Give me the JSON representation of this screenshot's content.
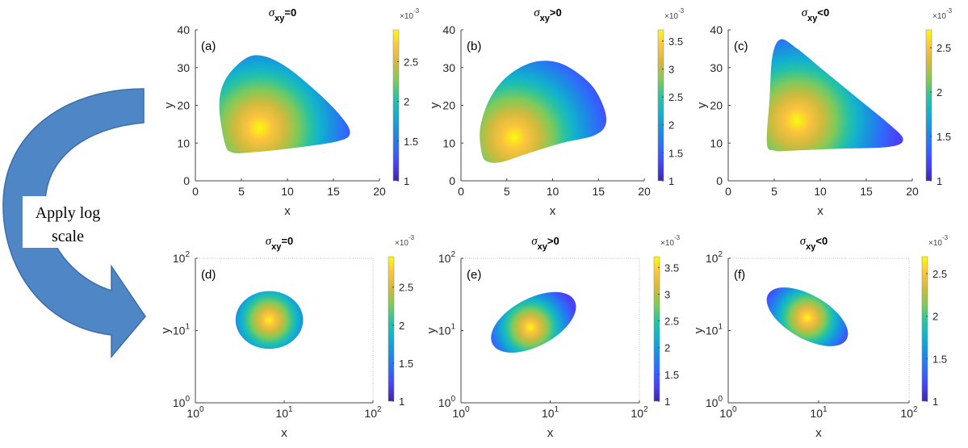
{
  "annotation": {
    "arrow_label_line1": "Apply log",
    "arrow_label_line2": "scale",
    "arrow_color": "#4f86c6"
  },
  "colormap": [
    "#3e26a8",
    "#4743f7",
    "#2f6cfb",
    "#1b8fe0",
    "#12b1cf",
    "#2ac3a0",
    "#7fca5a",
    "#d0ba3d",
    "#fbc33e",
    "#f9fb0e"
  ],
  "chart_data": [
    {
      "id": "a",
      "panel_label": "(a)",
      "type": "heatmap",
      "scale": "linear",
      "title_sigma": "σ",
      "title_sub": "xy",
      "title_rel": "=0",
      "xlabel": "x",
      "ylabel": "y",
      "xlim": [
        0,
        20
      ],
      "ylim": [
        0,
        40
      ],
      "xticks": [
        "0",
        "5",
        "10",
        "15",
        "20"
      ],
      "yticks": [
        "0",
        "10",
        "20",
        "30",
        "40"
      ],
      "colorbar": {
        "min": 1,
        "max": 2.9,
        "ticks": [
          1,
          1.5,
          2,
          2.5
        ],
        "tick_labels": [
          "1",
          "1.5",
          "2",
          "2.5"
        ],
        "multiplier": "×10",
        "exponent": "-3"
      },
      "peak": {
        "x": 7,
        "y": 14
      },
      "domain_boundary": [
        [
          3.2,
          10
        ],
        [
          2.6,
          20
        ],
        [
          3.3,
          27
        ],
        [
          5.5,
          32.5
        ],
        [
          7.5,
          33
        ],
        [
          10,
          30
        ],
        [
          13,
          24
        ],
        [
          15.5,
          18
        ],
        [
          16.8,
          13
        ],
        [
          15.5,
          10.5
        ],
        [
          10,
          8.5
        ],
        [
          6,
          7.5
        ],
        [
          4,
          7.5
        ]
      ]
    },
    {
      "id": "b",
      "panel_label": "(b)",
      "type": "heatmap",
      "scale": "linear",
      "title_sigma": "σ",
      "title_sub": "xy",
      "title_rel": ">0",
      "xlabel": "x",
      "ylabel": "y",
      "xlim": [
        0,
        20
      ],
      "ylim": [
        0,
        40
      ],
      "xticks": [
        "0",
        "5",
        "10",
        "15",
        "20"
      ],
      "yticks": [
        "0",
        "10",
        "20",
        "30",
        "40"
      ],
      "colorbar": {
        "min": 1,
        "max": 3.7,
        "ticks": [
          1,
          1.5,
          2,
          2.5,
          3,
          3.5
        ],
        "tick_labels": [
          "1",
          "1.5",
          "2",
          "2.5",
          "3",
          "3.5"
        ],
        "multiplier": "×10",
        "exponent": "-3"
      },
      "peak": {
        "x": 5.8,
        "y": 11.5
      },
      "domain_boundary": [
        [
          2.3,
          7
        ],
        [
          2.1,
          14
        ],
        [
          3.2,
          22
        ],
        [
          5.2,
          28
        ],
        [
          8,
          31.5
        ],
        [
          11,
          31
        ],
        [
          14,
          26
        ],
        [
          15.5,
          20
        ],
        [
          15.8,
          15
        ],
        [
          14.5,
          12
        ],
        [
          11,
          10
        ],
        [
          7,
          7
        ],
        [
          4.5,
          5
        ],
        [
          3,
          5
        ]
      ]
    },
    {
      "id": "c",
      "panel_label": "(c)",
      "type": "heatmap",
      "scale": "linear",
      "title_sigma": "σ",
      "title_sub": "xy",
      "title_rel": "<0",
      "xlabel": "x",
      "ylabel": "y",
      "xlim": [
        0,
        20
      ],
      "ylim": [
        0,
        40
      ],
      "xticks": [
        "0",
        "5",
        "10",
        "15",
        "20"
      ],
      "yticks": [
        "0",
        "10",
        "20",
        "30",
        "40"
      ],
      "colorbar": {
        "min": 1,
        "max": 2.7,
        "ticks": [
          1,
          1.5,
          2,
          2.5
        ],
        "tick_labels": [
          "1",
          "1.5",
          "2",
          "2.5"
        ],
        "multiplier": "×10",
        "exponent": "-3"
      },
      "peak": {
        "x": 7.5,
        "y": 16
      },
      "domain_boundary": [
        [
          4.2,
          10
        ],
        [
          4.5,
          22
        ],
        [
          4.8,
          33
        ],
        [
          5.7,
          37.5
        ],
        [
          7.5,
          35
        ],
        [
          10,
          30
        ],
        [
          14,
          22
        ],
        [
          17.5,
          15
        ],
        [
          19,
          11
        ],
        [
          17.5,
          9
        ],
        [
          12,
          8.5
        ],
        [
          7,
          8
        ],
        [
          5,
          8
        ]
      ]
    },
    {
      "id": "d",
      "panel_label": "(d)",
      "type": "heatmap",
      "scale": "log",
      "title_sigma": "σ",
      "title_sub": "xy",
      "title_rel": "=0",
      "xlabel": "x",
      "ylabel": "y",
      "xlim": [
        1,
        100
      ],
      "ylim": [
        1,
        100
      ],
      "xticks": [
        "10^0",
        "10^1",
        "10^2"
      ],
      "yticks": [
        "10^0",
        "10^1",
        "10^2"
      ],
      "colorbar": {
        "min": 1,
        "max": 2.9,
        "ticks": [
          1,
          1.5,
          2,
          2.5
        ],
        "tick_labels": [
          "1",
          "1.5",
          "2",
          "2.5"
        ],
        "multiplier": "×10",
        "exponent": "-3"
      },
      "peak": {
        "x": 6.8,
        "y": 14
      },
      "domain_ellipse": {
        "cx": 6.8,
        "cy": 14,
        "rx_decades": 0.38,
        "ry_decades": 0.4,
        "tilt_deg": 0
      }
    },
    {
      "id": "e",
      "panel_label": "(e)",
      "type": "heatmap",
      "scale": "log",
      "title_sigma": "σ",
      "title_sub": "xy",
      "title_rel": ">0",
      "xlabel": "x",
      "ylabel": "y",
      "xlim": [
        1,
        100
      ],
      "ylim": [
        1,
        100
      ],
      "xticks": [
        "10^0",
        "10^1",
        "10^2"
      ],
      "yticks": [
        "10^0",
        "10^1",
        "10^2"
      ],
      "colorbar": {
        "min": 1,
        "max": 3.7,
        "ticks": [
          1,
          1.5,
          2,
          2.5,
          3,
          3.5
        ],
        "tick_labels": [
          "1",
          "1.5",
          "2",
          "2.5",
          "3",
          "3.5"
        ],
        "multiplier": "×10",
        "exponent": "-3"
      },
      "peak": {
        "x": 6,
        "y": 11
      },
      "domain_ellipse": {
        "cx": 6.5,
        "cy": 13,
        "rx_decades": 0.52,
        "ry_decades": 0.33,
        "tilt_deg": -28
      }
    },
    {
      "id": "f",
      "panel_label": "(f)",
      "type": "heatmap",
      "scale": "log",
      "title_sigma": "σ",
      "title_sub": "xy",
      "title_rel": "<0",
      "xlabel": "x",
      "ylabel": "y",
      "xlim": [
        1,
        100
      ],
      "ylim": [
        1,
        100
      ],
      "xticks": [
        "10^0",
        "10^1",
        "10^2"
      ],
      "yticks": [
        "10^0",
        "10^1",
        "10^2"
      ],
      "colorbar": {
        "min": 1,
        "max": 2.7,
        "ticks": [
          1,
          1.5,
          2,
          2.5
        ],
        "tick_labels": [
          "1",
          "1.5",
          "2",
          "2.5"
        ],
        "multiplier": "×10",
        "exponent": "-3"
      },
      "peak": {
        "x": 7.5,
        "y": 15
      },
      "domain_ellipse": {
        "cx": 7.5,
        "cy": 15.5,
        "rx_decades": 0.5,
        "ry_decades": 0.3,
        "tilt_deg": 30
      }
    }
  ]
}
